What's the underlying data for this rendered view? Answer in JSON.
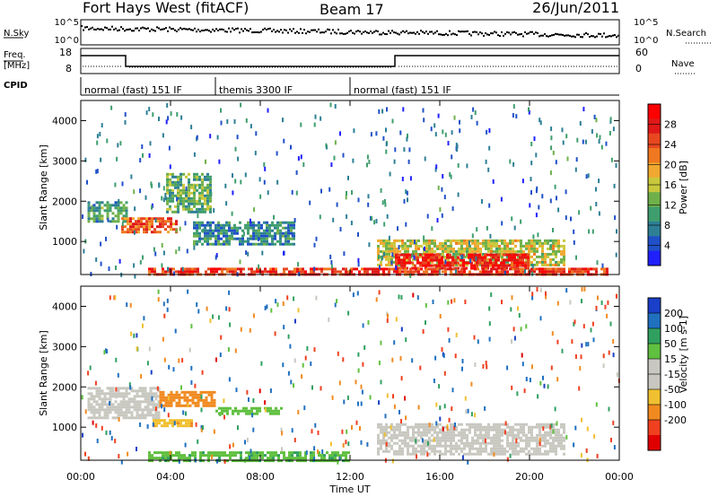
{
  "header": {
    "station": "Fort Hays West (fitACF)",
    "beam": "Beam 17",
    "date": "26/Jun/2011"
  },
  "top_panels": {
    "nsky": {
      "label": "N.Sky",
      "ticks": [
        "10^5",
        "10^0"
      ]
    },
    "nsearch": {
      "label": "N.Search",
      "ticks": [
        "10^5",
        "10^0"
      ]
    },
    "freq": {
      "label_line1": "Freq.",
      "label_line2": "[MHz]",
      "ticks": [
        "18",
        "8"
      ]
    },
    "nave": {
      "label": "Nave",
      "ticks": [
        "60",
        "0"
      ]
    },
    "cpid": {
      "label": "CPID",
      "segments": [
        {
          "name": "normal (fast) 151 IF",
          "start": 0,
          "end": 6
        },
        {
          "name": "themis 3300 IF",
          "start": 6,
          "end": 12
        },
        {
          "name": "normal (fast) 151 IF",
          "start": 12,
          "end": 24
        }
      ]
    }
  },
  "time_axis": {
    "label": "Time UT",
    "ticks": [
      "00:00",
      "04:00",
      "08:00",
      "12:00",
      "16:00",
      "20:00",
      "00:00"
    ],
    "tick_hours": [
      0,
      4,
      8,
      12,
      16,
      20,
      24
    ],
    "range_hours": [
      0,
      24
    ]
  },
  "range_axis": {
    "label": "Slant Range [km]",
    "ticks": [
      "1000",
      "2000",
      "3000",
      "4000"
    ],
    "tick_values": [
      1000,
      2000,
      3000,
      4000
    ],
    "range_km": [
      180,
      4500
    ]
  },
  "power_scale": {
    "label": "Power [dB]",
    "ticks": [
      "4",
      "8",
      "12",
      "16",
      "20",
      "24",
      "28"
    ],
    "tick_values": [
      4,
      8,
      12,
      16,
      20,
      24,
      28
    ],
    "range": [
      0,
      32
    ],
    "colors": [
      "#2020ff",
      "#2050c8",
      "#2d7f96",
      "#3f9e6e",
      "#6fb04a",
      "#c8c83c",
      "#f0a830",
      "#f07820",
      "#e84820",
      "#e01818",
      "#ff0000"
    ]
  },
  "velocity_scale": {
    "label": "Velocity [m s-1]",
    "ticks": [
      "200",
      "100",
      "50",
      "15",
      "-15",
      "-50",
      "-100",
      "-200"
    ],
    "colors": [
      "#1a3fc8",
      "#2070c0",
      "#30a060",
      "#60c040",
      "#c8c8c0",
      "#c8c8c0",
      "#f0c030",
      "#f08a20",
      "#f04020",
      "#e00000"
    ]
  },
  "chart_data": [
    {
      "type": "heatmap",
      "title": "Power",
      "xlabel": "Time UT",
      "ylabel": "Slant Range [km]",
      "xlim": [
        0,
        24
      ],
      "ylim": [
        180,
        4500
      ],
      "colorbar": "Power [dB]",
      "regions": [
        {
          "t_start": 0.3,
          "t_end": 2.0,
          "r_low": 1500,
          "r_high": 2000,
          "value": 10
        },
        {
          "t_start": 1.8,
          "t_end": 4.3,
          "r_low": 1200,
          "r_high": 1600,
          "value": 24
        },
        {
          "t_start": 3.8,
          "t_end": 5.8,
          "r_low": 1700,
          "r_high": 2700,
          "value": 12
        },
        {
          "t_start": 5.0,
          "t_end": 9.5,
          "r_low": 900,
          "r_high": 1500,
          "value": 8
        },
        {
          "t_start": 13.2,
          "t_end": 21.5,
          "r_low": 400,
          "r_high": 1050,
          "value": 16
        },
        {
          "t_start": 14.0,
          "t_end": 20.0,
          "r_low": 300,
          "r_high": 700,
          "value": 28
        },
        {
          "t_start": 3.0,
          "t_end": 23.5,
          "r_low": 180,
          "r_high": 350,
          "value": 26
        }
      ]
    },
    {
      "type": "heatmap",
      "title": "Velocity",
      "xlabel": "Time UT",
      "ylabel": "Slant Range [km]",
      "xlim": [
        0,
        24
      ],
      "ylim": [
        180,
        4500
      ],
      "colorbar": "Velocity [m s-1]",
      "regions": [
        {
          "t_start": 0.3,
          "t_end": 3.5,
          "r_low": 1200,
          "r_high": 2000,
          "value": 0
        },
        {
          "t_start": 3.5,
          "t_end": 6.0,
          "r_low": 1500,
          "r_high": 1900,
          "value": -80
        },
        {
          "t_start": 3.2,
          "t_end": 5.0,
          "r_low": 1000,
          "r_high": 1200,
          "value": -40
        },
        {
          "t_start": 6.0,
          "t_end": 9.0,
          "r_low": 1300,
          "r_high": 1500,
          "value": 30
        },
        {
          "t_start": 13.2,
          "t_end": 21.5,
          "r_low": 300,
          "r_high": 1100,
          "value": 0
        },
        {
          "t_start": 3.0,
          "t_end": 12.0,
          "r_low": 180,
          "r_high": 400,
          "value": 40
        }
      ]
    }
  ]
}
